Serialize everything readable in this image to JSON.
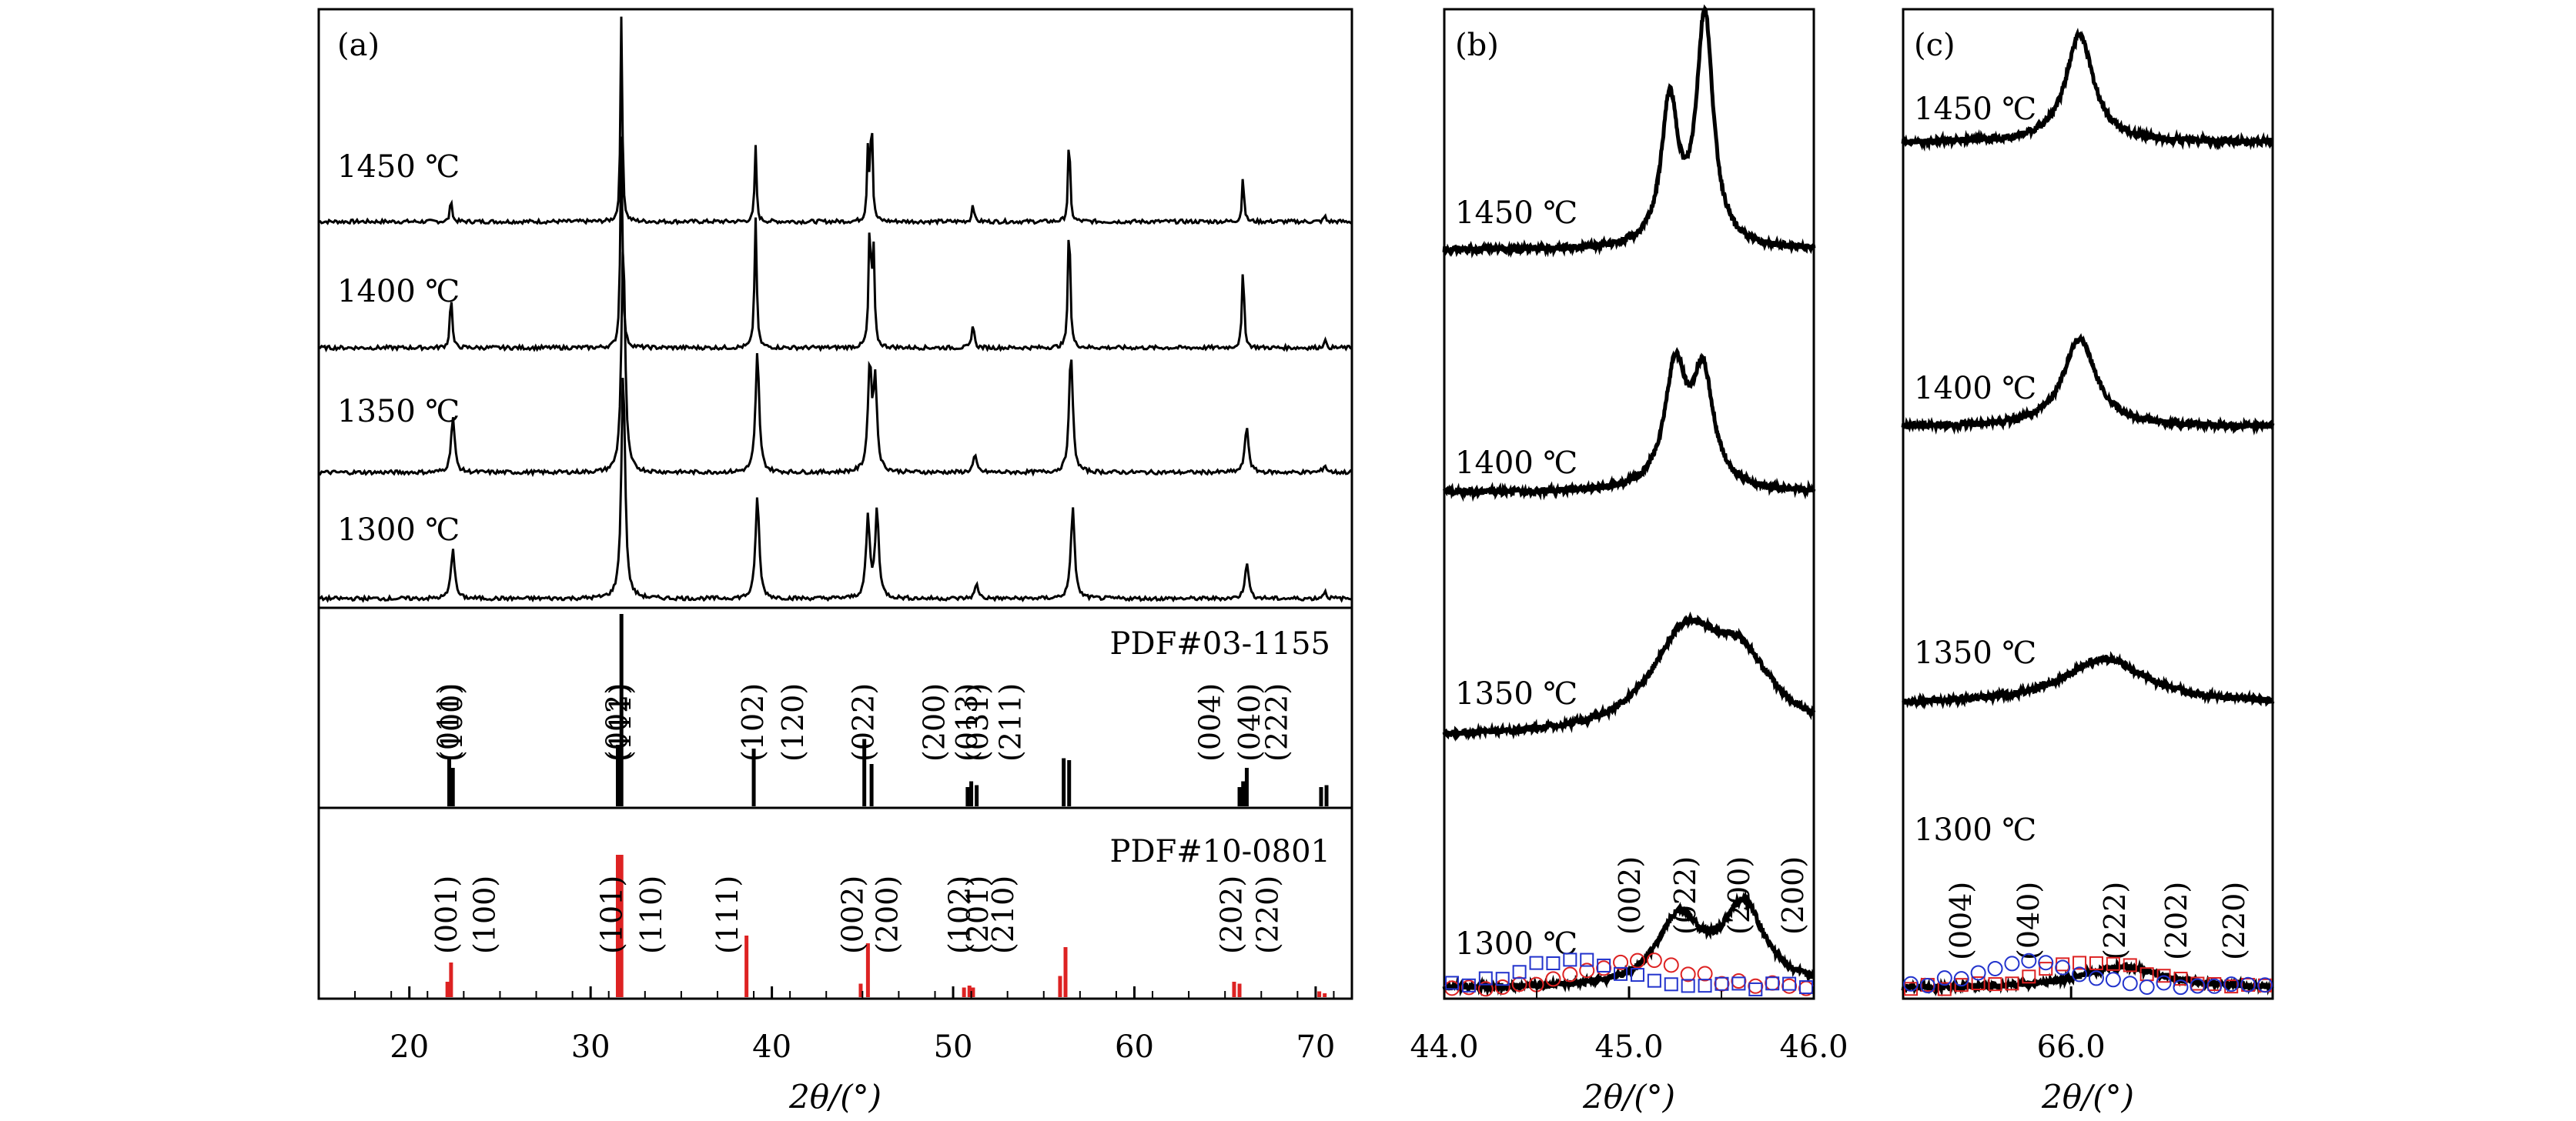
{
  "chart_data": [
    {
      "panel": "a",
      "panel_label": "(a)",
      "type": "line",
      "xlabel": "2θ/(°)",
      "xlim": [
        15,
        72
      ],
      "x_ticks": [
        "20",
        "30",
        "40",
        "50",
        "60",
        "70"
      ],
      "x_tick_values": [
        20,
        30,
        40,
        50,
        60,
        70
      ],
      "series": [
        {
          "name": "1450 ℃",
          "peaks": [
            [
              22.3,
              0.12
            ],
            [
              31.7,
              1.0
            ],
            [
              39.1,
              0.37
            ],
            [
              45.3,
              0.35
            ],
            [
              45.5,
              0.55
            ],
            [
              51.1,
              0.1
            ],
            [
              56.4,
              0.45
            ],
            [
              66.0,
              0.24
            ],
            [
              70.5,
              0.03
            ]
          ]
        },
        {
          "name": "1400 ℃",
          "peaks": [
            [
              22.3,
              0.25
            ],
            [
              31.7,
              0.98
            ],
            [
              39.1,
              0.6
            ],
            [
              45.4,
              0.55
            ],
            [
              45.6,
              0.45
            ],
            [
              51.1,
              0.12
            ],
            [
              56.4,
              0.62
            ],
            [
              66.0,
              0.37
            ],
            [
              70.5,
              0.04
            ]
          ]
        },
        {
          "name": "1350 ℃",
          "peaks": [
            [
              22.4,
              0.24
            ],
            [
              31.8,
              1.0
            ],
            [
              39.2,
              0.52
            ],
            [
              45.4,
              0.45
            ],
            [
              45.7,
              0.38
            ],
            [
              51.2,
              0.07
            ],
            [
              56.5,
              0.52
            ],
            [
              66.2,
              0.2
            ],
            [
              70.5,
              0.03
            ]
          ]
        },
        {
          "name": "1300 ℃",
          "peaks": [
            [
              22.4,
              0.22
            ],
            [
              31.8,
              1.0
            ],
            [
              39.2,
              0.45
            ],
            [
              45.3,
              0.35
            ],
            [
              45.8,
              0.38
            ],
            [
              51.3,
              0.06
            ],
            [
              56.6,
              0.4
            ],
            [
              66.2,
              0.16
            ],
            [
              70.5,
              0.03
            ]
          ]
        }
      ],
      "reference_patterns": [
        {
          "name": "PDF#03-1155",
          "color": "#000000",
          "sticks": [
            [
              22.2,
              0.25
            ],
            [
              22.4,
              0.2
            ],
            [
              31.5,
              0.32
            ],
            [
              31.7,
              1.0
            ],
            [
              39.0,
              0.3
            ],
            [
              45.1,
              0.35
            ],
            [
              45.5,
              0.22
            ],
            [
              50.8,
              0.1
            ],
            [
              51.0,
              0.13
            ],
            [
              51.3,
              0.11
            ],
            [
              56.1,
              0.25
            ],
            [
              56.4,
              0.24
            ],
            [
              65.8,
              0.1
            ],
            [
              66.0,
              0.13
            ],
            [
              66.2,
              0.2
            ],
            [
              70.3,
              0.1
            ],
            [
              70.6,
              0.11
            ]
          ],
          "hkl_labels": [
            [
              "(011)",
              22.2
            ],
            [
              "(100)",
              22.4
            ],
            [
              "(002)",
              31.5
            ],
            [
              "(111)",
              31.7
            ],
            [
              "(102)",
              39.0
            ],
            [
              "(120)",
              41.2
            ],
            [
              "(022)",
              45.1
            ],
            [
              "(200)",
              49.0
            ],
            [
              "(013)",
              50.8
            ],
            [
              "(031)",
              51.4
            ],
            [
              "(211)",
              53.2
            ],
            [
              "(004)",
              64.2
            ],
            [
              "(040)",
              66.4
            ],
            [
              "(222)",
              67.9
            ]
          ]
        },
        {
          "name": "PDF#10-0801",
          "color": "#dd2222",
          "sticks": [
            [
              22.1,
              0.08
            ],
            [
              22.3,
              0.18
            ],
            [
              31.5,
              0.74
            ],
            [
              31.7,
              0.74
            ],
            [
              38.6,
              0.32
            ],
            [
              44.9,
              0.07
            ],
            [
              45.3,
              0.28
            ],
            [
              50.6,
              0.05
            ],
            [
              50.9,
              0.06
            ],
            [
              51.1,
              0.05
            ],
            [
              55.9,
              0.11
            ],
            [
              56.2,
              0.26
            ],
            [
              65.5,
              0.08
            ],
            [
              65.8,
              0.07
            ],
            [
              70.2,
              0.03
            ],
            [
              70.5,
              0.02
            ]
          ],
          "hkl_labels": [
            [
              "(001)",
              22.1
            ],
            [
              "(100)",
              24.2
            ],
            [
              "(101)",
              31.2
            ],
            [
              "(110)",
              33.4
            ],
            [
              "(111)",
              37.6
            ],
            [
              "(002)",
              44.5
            ],
            [
              "(200)",
              46.4
            ],
            [
              "(102)",
              50.4
            ],
            [
              "(201)",
              51.4
            ],
            [
              "(210)",
              52.8
            ],
            [
              "(202)",
              65.4
            ],
            [
              "(220)",
              67.4
            ]
          ]
        }
      ]
    },
    {
      "panel": "b",
      "panel_label": "(b)",
      "type": "line",
      "xlabel": "2θ/(°)",
      "xlim": [
        44.0,
        46.0
      ],
      "x_ticks": [
        "44.0",
        "45.0",
        "46.0"
      ],
      "x_tick_values": [
        44.0,
        45.0,
        46.0
      ],
      "series": [
        {
          "name": "1450 ℃",
          "peaks": [
            [
              45.22,
              0.62
            ],
            [
              45.41,
              1.0
            ]
          ]
        },
        {
          "name": "1400 ℃",
          "peaks": [
            [
              45.25,
              0.62
            ],
            [
              45.4,
              0.58
            ]
          ]
        },
        {
          "name": "1350 ℃",
          "peaks": [
            [
              45.3,
              0.52
            ],
            [
              45.6,
              0.38
            ]
          ]
        },
        {
          "name": "1300 ℃",
          "peaks": [
            [
              45.27,
              0.55
            ],
            [
              45.62,
              0.65
            ]
          ]
        }
      ],
      "hkl_labels": [
        "(002)",
        "(022)",
        "(200)",
        "(200)"
      ],
      "fit_markers": [
        {
          "color": "#dd2222",
          "shape": "circle"
        },
        {
          "color": "#2233cc",
          "shape": "square"
        }
      ]
    },
    {
      "panel": "c",
      "panel_label": "(c)",
      "type": "line",
      "xlabel": "2θ/(°)",
      "xlim": [
        65.0,
        67.2
      ],
      "x_ticks": [
        "66.0"
      ],
      "x_tick_values": [
        66.0
      ],
      "series": [
        {
          "name": "1450 ℃",
          "peaks": [
            [
              66.05,
              1.0
            ]
          ]
        },
        {
          "name": "1400 ℃",
          "peaks": [
            [
              66.05,
              0.85
            ]
          ]
        },
        {
          "name": "1350 ℃",
          "peaks": [
            [
              66.2,
              0.45
            ]
          ]
        },
        {
          "name": "1300 ℃",
          "peaks": [
            [
              66.3,
              0.35
            ]
          ]
        }
      ],
      "hkl_labels": [
        "(004)",
        "(040)",
        "(222)",
        "(202)",
        "(220)"
      ],
      "fit_markers": [
        {
          "color": "#dd2222",
          "shape": "square"
        },
        {
          "color": "#2233cc",
          "shape": "circle"
        }
      ]
    }
  ]
}
